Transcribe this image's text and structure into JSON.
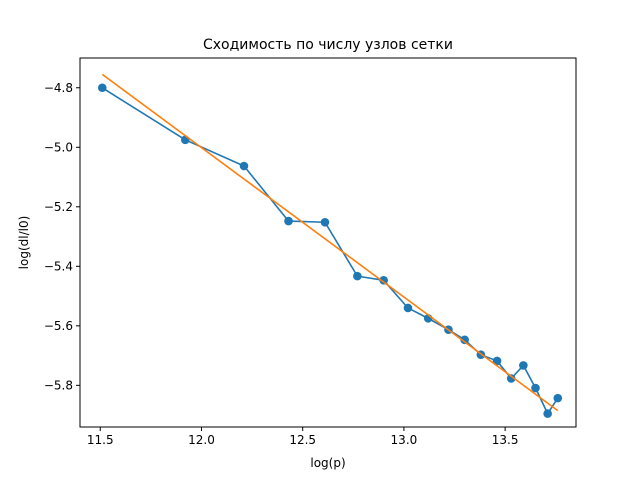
{
  "chart_data": {
    "type": "line",
    "title": "Сходимость по числу узлов сетки",
    "xlabel": "log(p)",
    "ylabel": "log(dl/l0)",
    "xlim": [
      11.4,
      13.85
    ],
    "ylim": [
      -5.94,
      -4.7
    ],
    "x_ticks": [
      11.5,
      12.0,
      12.5,
      13.0,
      13.5
    ],
    "x_tick_labels": [
      "11.5",
      "12.0",
      "12.5",
      "13.0",
      "13.5"
    ],
    "y_ticks": [
      -4.8,
      -5.0,
      -5.2,
      -5.4,
      -5.6,
      -5.8
    ],
    "y_tick_labels": [
      "−4.8",
      "−5.0",
      "−5.2",
      "−5.4",
      "−5.6",
      "−5.8"
    ],
    "grid": false,
    "series": [
      {
        "color": "#1f77b4",
        "marker": "circle",
        "x": [
          11.51,
          11.92,
          12.21,
          12.43,
          12.61,
          12.77,
          12.9,
          13.02,
          13.12,
          13.22,
          13.3,
          13.38,
          13.46,
          13.53,
          13.59,
          13.65,
          13.71,
          13.76
        ],
        "y": [
          -4.8,
          -4.975,
          -5.063,
          -5.248,
          -5.252,
          -5.433,
          -5.447,
          -5.54,
          -5.575,
          -5.613,
          -5.647,
          -5.697,
          -5.718,
          -5.777,
          -5.733,
          -5.809,
          -5.895,
          -5.843
        ]
      },
      {
        "color": "#ff7f0e",
        "marker": "none",
        "x": [
          11.51,
          13.76
        ],
        "y": [
          -4.755,
          -5.885
        ]
      }
    ]
  }
}
